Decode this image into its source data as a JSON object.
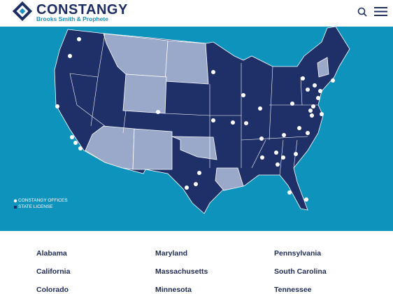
{
  "header": {
    "brand": "CONSTANGY",
    "tagline": "Brooks Smith & Prophete"
  },
  "map": {
    "legend": [
      "CONSTANGY OFFICES",
      "STATE LICENSE"
    ]
  },
  "states": {
    "columns": [
      [
        "Alabama",
        "California",
        "Colorado"
      ],
      [
        "Maryland",
        "Massachusetts",
        "Minnesota"
      ],
      [
        "Pennsylvania",
        "South Carolina",
        "Tennessee"
      ]
    ]
  }
}
